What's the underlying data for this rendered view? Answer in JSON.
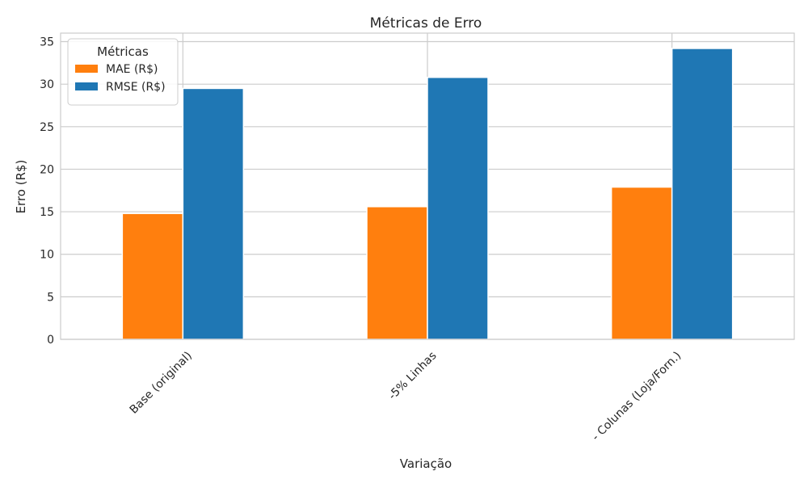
{
  "chart_data": {
    "type": "bar",
    "title": "Métricas de Erro",
    "xlabel": "Variação",
    "ylabel": "Erro (R$)",
    "categories": [
      "Base (original)",
      "-5% Linhas",
      "- Colunas (Loja/Forn.)"
    ],
    "series": [
      {
        "name": "MAE (R$)",
        "color": "#ff7f0e",
        "values": [
          14.8,
          15.6,
          17.9
        ]
      },
      {
        "name": "RMSE (R$)",
        "color": "#1f77b4",
        "values": [
          29.5,
          30.8,
          34.2
        ]
      }
    ],
    "ylim": [
      0,
      36
    ],
    "yticks": [
      0,
      5,
      10,
      15,
      20,
      25,
      30,
      35
    ],
    "grid": true,
    "legend": {
      "title": "Métricas",
      "position": "top-left"
    }
  }
}
